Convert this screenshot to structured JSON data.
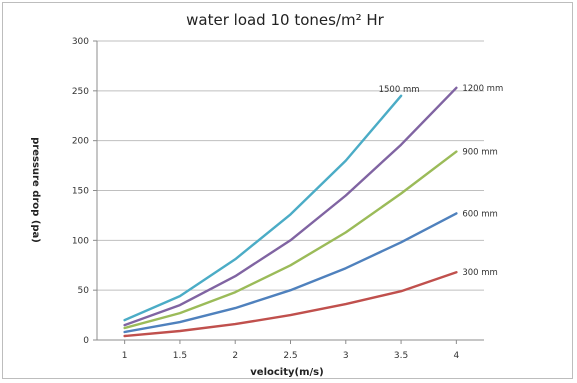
{
  "chart_data": {
    "type": "line",
    "title": "water load 10 tones/m² Hr",
    "xlabel": "velocity(m/s)",
    "ylabel": "pressure drop (pa)",
    "x_ticks": [
      "1",
      "1.5",
      "2",
      "2.5",
      "3",
      "3.5",
      "4"
    ],
    "y_ticks": [
      "0",
      "50",
      "100",
      "150",
      "200",
      "250",
      "300"
    ],
    "ylim": [
      0,
      300
    ],
    "grid": "horizontal",
    "legend": "inline labels at line ends",
    "series": [
      {
        "name": "300 mm",
        "color": "#c0504d",
        "x": [
          1,
          1.5,
          2,
          2.5,
          3,
          3.5,
          4
        ],
        "y": [
          4,
          9,
          16,
          25,
          36,
          49,
          68
        ]
      },
      {
        "name": "600 mm",
        "color": "#4f81bd",
        "x": [
          1,
          1.5,
          2,
          2.5,
          3,
          3.5,
          4
        ],
        "y": [
          8,
          18,
          32,
          50,
          72,
          98,
          127
        ]
      },
      {
        "name": "900 mm",
        "color": "#9bbb59",
        "x": [
          1,
          1.5,
          2,
          2.5,
          3,
          3.5,
          4
        ],
        "y": [
          12,
          27,
          48,
          75,
          108,
          147,
          189
        ]
      },
      {
        "name": "1200 mm",
        "color": "#8064a2",
        "x": [
          1,
          1.5,
          2,
          2.5,
          3,
          3.5,
          4
        ],
        "y": [
          15,
          35,
          64,
          100,
          145,
          196,
          253
        ]
      },
      {
        "name": "1500 mm",
        "color": "#4bacc6",
        "x": [
          1,
          1.5,
          2,
          2.5,
          3,
          3.5
        ],
        "y": [
          20,
          44,
          81,
          126,
          180,
          245
        ]
      }
    ]
  }
}
